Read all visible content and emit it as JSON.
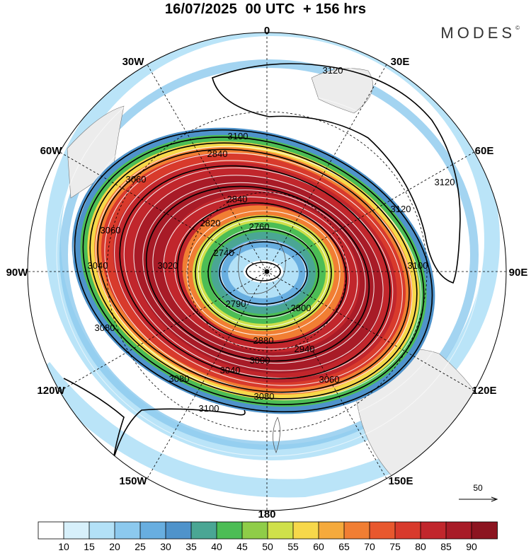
{
  "title": "16/07/2025  00 UTC  + 156 hrs",
  "logo": "MODES",
  "logo_mark": "©",
  "projection": "south-polar-stereographic",
  "longitude_labels": [
    "0",
    "30E",
    "60E",
    "90E",
    "120E",
    "150E",
    "180",
    "150W",
    "120W",
    "90W",
    "60W",
    "30W"
  ],
  "contour_labels": [
    {
      "text": "3120"
    },
    {
      "text": "3120"
    },
    {
      "text": "3120"
    },
    {
      "text": "3100"
    },
    {
      "text": "3100"
    },
    {
      "text": "3100"
    },
    {
      "text": "3080"
    },
    {
      "text": "3080"
    },
    {
      "text": "3080"
    },
    {
      "text": "3060"
    },
    {
      "text": "3060"
    },
    {
      "text": "3060"
    },
    {
      "text": "3040"
    },
    {
      "text": "3040"
    },
    {
      "text": "3020"
    },
    {
      "text": "3000"
    },
    {
      "text": "2940"
    },
    {
      "text": "2880"
    },
    {
      "text": "2840"
    },
    {
      "text": "2840"
    },
    {
      "text": "2820"
    },
    {
      "text": "2800"
    },
    {
      "text": "2790"
    },
    {
      "text": "2760"
    },
    {
      "text": "2740"
    }
  ],
  "reference_vector": {
    "label": "50"
  },
  "colorbar": {
    "ticks": [
      "10",
      "15",
      "20",
      "25",
      "30",
      "35",
      "40",
      "45",
      "50",
      "55",
      "60",
      "65",
      "70",
      "75",
      "80",
      "85",
      "90"
    ],
    "colors": [
      "#ffffff",
      "#d7f0fb",
      "#b3e1f7",
      "#8cc9ee",
      "#68aee0",
      "#4f93cb",
      "#4aa694",
      "#4cbd55",
      "#8fcd48",
      "#cfe04a",
      "#f7d84a",
      "#f5aa3c",
      "#f17e33",
      "#e8582e",
      "#d83a2c",
      "#c1262c",
      "#a81b27",
      "#8c1420"
    ]
  }
}
